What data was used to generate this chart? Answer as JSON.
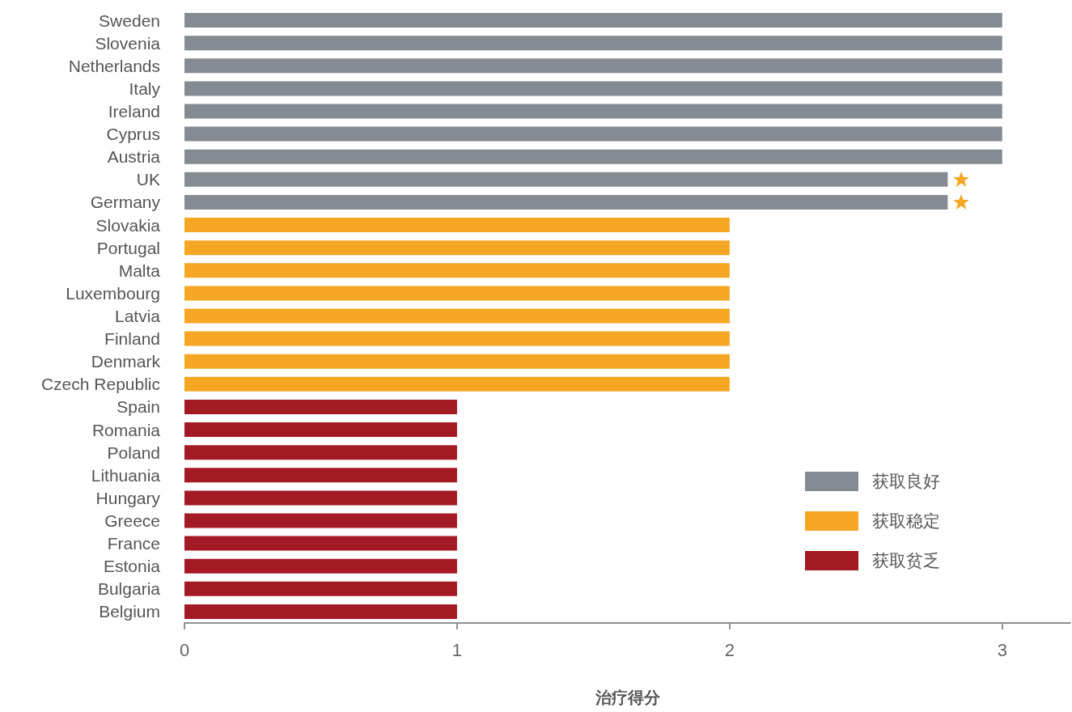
{
  "chart_data": {
    "type": "bar",
    "orientation": "horizontal",
    "stacked": true,
    "xlabel": "治疗得分",
    "categories": [
      "Sweden",
      "Slovenia",
      "Netherlands",
      "Italy",
      "Ireland",
      "Cyprus",
      "Austria",
      "UK",
      "Germany",
      "Slovakia",
      "Portugal",
      "Malta",
      "Luxembourg",
      "Latvia",
      "Finland",
      "Denmark",
      "Czech Republic",
      "Spain",
      "Romania",
      "Poland",
      "Lithuania",
      "Hungary",
      "Greece",
      "France",
      "Estonia",
      "Bulgaria",
      "Belgium"
    ],
    "series": [
      {
        "name": "获取良好",
        "color": "#848b93",
        "values": [
          3,
          3,
          3,
          3,
          3,
          3,
          3,
          2.8,
          2.8,
          null,
          null,
          null,
          null,
          null,
          null,
          null,
          null,
          null,
          null,
          null,
          null,
          null,
          null,
          null,
          null,
          null,
          null
        ]
      },
      {
        "name": "获取稳定",
        "color": "#f5a623",
        "values": [
          null,
          null,
          null,
          null,
          null,
          null,
          null,
          null,
          null,
          2,
          2,
          2,
          2,
          2,
          2,
          2,
          2,
          null,
          null,
          null,
          null,
          null,
          null,
          null,
          null,
          null,
          null
        ]
      },
      {
        "name": "获取贫乏",
        "color": "#a31a24",
        "values": [
          null,
          null,
          null,
          null,
          null,
          null,
          null,
          null,
          null,
          null,
          null,
          null,
          null,
          null,
          null,
          null,
          null,
          1,
          1,
          1,
          1,
          1,
          1,
          1,
          1,
          1,
          1
        ]
      }
    ],
    "xlim": [
      0,
      3.25
    ],
    "xticks": [
      0,
      1,
      2,
      3
    ],
    "grid": false,
    "legend": "bottom right"
  }
}
